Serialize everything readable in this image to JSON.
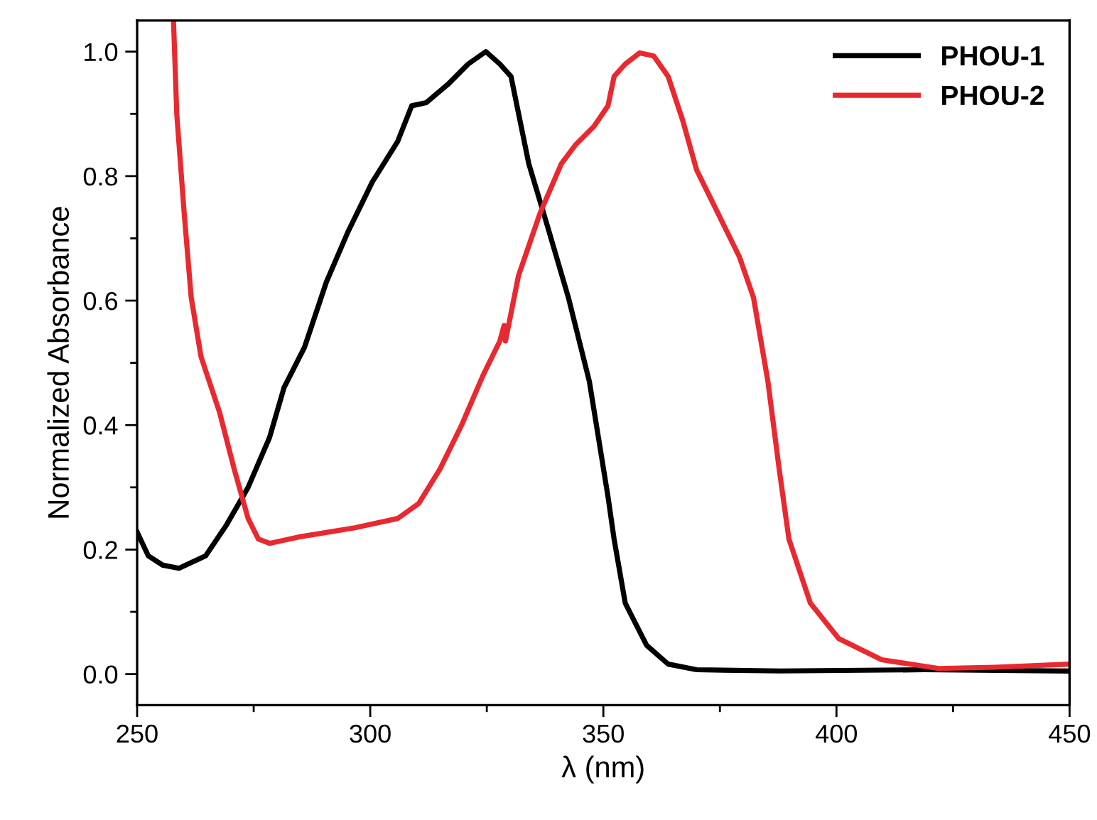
{
  "chart_data": {
    "type": "line",
    "xlabel": "λ (nm)",
    "ylabel": "Normalized Absorbance",
    "xlim": [
      250,
      450
    ],
    "ylim": [
      -0.05,
      1.05
    ],
    "xticks": [
      250,
      {
        "value": 275,
        "label": null
      },
      300,
      {
        "value": 325,
        "label": null
      },
      350,
      {
        "value": 375,
        "label": null
      },
      400,
      {
        "value": 425,
        "label": null
      },
      450
    ],
    "yticks": [
      {
        "value": 0,
        "label": "0.0"
      },
      {
        "value": 0.1,
        "label": null
      },
      {
        "value": 0.2,
        "label": "0.2"
      },
      {
        "value": 0.3,
        "label": null
      },
      {
        "value": 0.4,
        "label": "0.4"
      },
      {
        "value": 0.5,
        "label": null
      },
      {
        "value": 0.6,
        "label": "0.6"
      },
      {
        "value": 0.7,
        "label": null
      },
      {
        "value": 0.8,
        "label": "0.8"
      },
      {
        "value": 0.9,
        "label": null
      },
      {
        "value": 1.0,
        "label": "1.0"
      }
    ],
    "grid": false,
    "legend": "top right",
    "marker": "none",
    "line_style": "solid",
    "series": [
      {
        "name": "PHOU-1",
        "color": "#000000",
        "x": [
          250,
          252.4,
          255.5,
          259,
          264.7,
          269.2,
          273.8,
          278.4,
          281.5,
          285.9,
          290.6,
          295.2,
          300.4,
          305.9,
          308.9,
          312,
          316.6,
          321,
          324.8,
          327.8,
          330.2,
          334,
          338,
          342.5,
          347,
          351,
          352.3,
          354.7,
          359.3,
          363.9,
          370,
          388,
          418.8,
          450
        ],
        "values": [
          0.228,
          0.19,
          0.175,
          0.17,
          0.19,
          0.24,
          0.3,
          0.38,
          0.46,
          0.525,
          0.63,
          0.71,
          0.79,
          0.856,
          0.913,
          0.918,
          0.947,
          0.98,
          1.0,
          0.98,
          0.96,
          0.82,
          0.72,
          0.605,
          0.47,
          0.285,
          0.217,
          0.114,
          0.046,
          0.016,
          0.007,
          0.005,
          0.007,
          0.005
        ]
      },
      {
        "name": "PHOU-2",
        "color": "#e8292f",
        "x": [
          257.8,
          258.5,
          260.1,
          261.6,
          263.7,
          267.7,
          270.8,
          273.8,
          276,
          278.4,
          284.5,
          296.7,
          305.9,
          310.4,
          315,
          319.6,
          324.2,
          327.8,
          328.7,
          329,
          331.8,
          336.4,
          341,
          344,
          348,
          351,
          352.3,
          354.7,
          357.8,
          360.8,
          363.9,
          367,
          370,
          374.6,
          379.2,
          382.2,
          385.3,
          387.7,
          389.8,
          394.4,
          400.5,
          409.7,
          421.9,
          434,
          450
        ],
        "values": [
          1.05,
          0.9,
          0.74,
          0.605,
          0.51,
          0.42,
          0.33,
          0.25,
          0.217,
          0.21,
          0.22,
          0.235,
          0.25,
          0.274,
          0.33,
          0.4,
          0.48,
          0.535,
          0.56,
          0.535,
          0.64,
          0.74,
          0.82,
          0.85,
          0.88,
          0.913,
          0.96,
          0.98,
          0.998,
          0.993,
          0.96,
          0.89,
          0.81,
          0.74,
          0.67,
          0.605,
          0.47,
          0.33,
          0.217,
          0.114,
          0.057,
          0.023,
          0.009,
          0.011,
          0.016
        ]
      }
    ]
  }
}
